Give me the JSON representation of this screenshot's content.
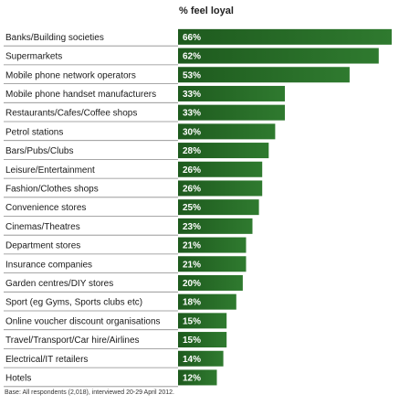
{
  "chart_data": {
    "type": "bar",
    "orientation": "horizontal",
    "column_header": "% feel loyal",
    "categories": [
      "Banks/Building societies",
      "Supermarkets",
      "Mobile phone network operators",
      "Mobile phone handset manufacturers",
      "Restaurants/Cafes/Coffee shops",
      "Petrol stations",
      "Bars/Pubs/Clubs",
      "Leisure/Entertainment",
      "Fashion/Clothes shops",
      "Convenience stores",
      "Cinemas/Theatres",
      "Department stores",
      "Insurance companies",
      "Garden centres/DIY stores",
      "Sport (eg Gyms, Sports clubs etc)",
      "Online voucher discount organisations",
      "Travel/Transport/Car hire/Airlines",
      "Electrical/IT retailers",
      "Hotels"
    ],
    "values": [
      66,
      62,
      53,
      33,
      33,
      30,
      28,
      26,
      26,
      25,
      23,
      21,
      21,
      20,
      18,
      15,
      15,
      14,
      12
    ],
    "value_labels": [
      "66%",
      "62%",
      "53%",
      "33%",
      "33%",
      "30%",
      "28%",
      "26%",
      "26%",
      "25%",
      "23%",
      "21%",
      "21%",
      "20%",
      "18%",
      "15%",
      "15%",
      "14%",
      "12%"
    ],
    "xlim": [
      0,
      66
    ],
    "grid": false,
    "bar_color": "#1e5a1e",
    "bar_color_light": "#2f7a2f",
    "footnote": "Base: All respondents (2,018), interviewed 20-29 April 2012."
  }
}
